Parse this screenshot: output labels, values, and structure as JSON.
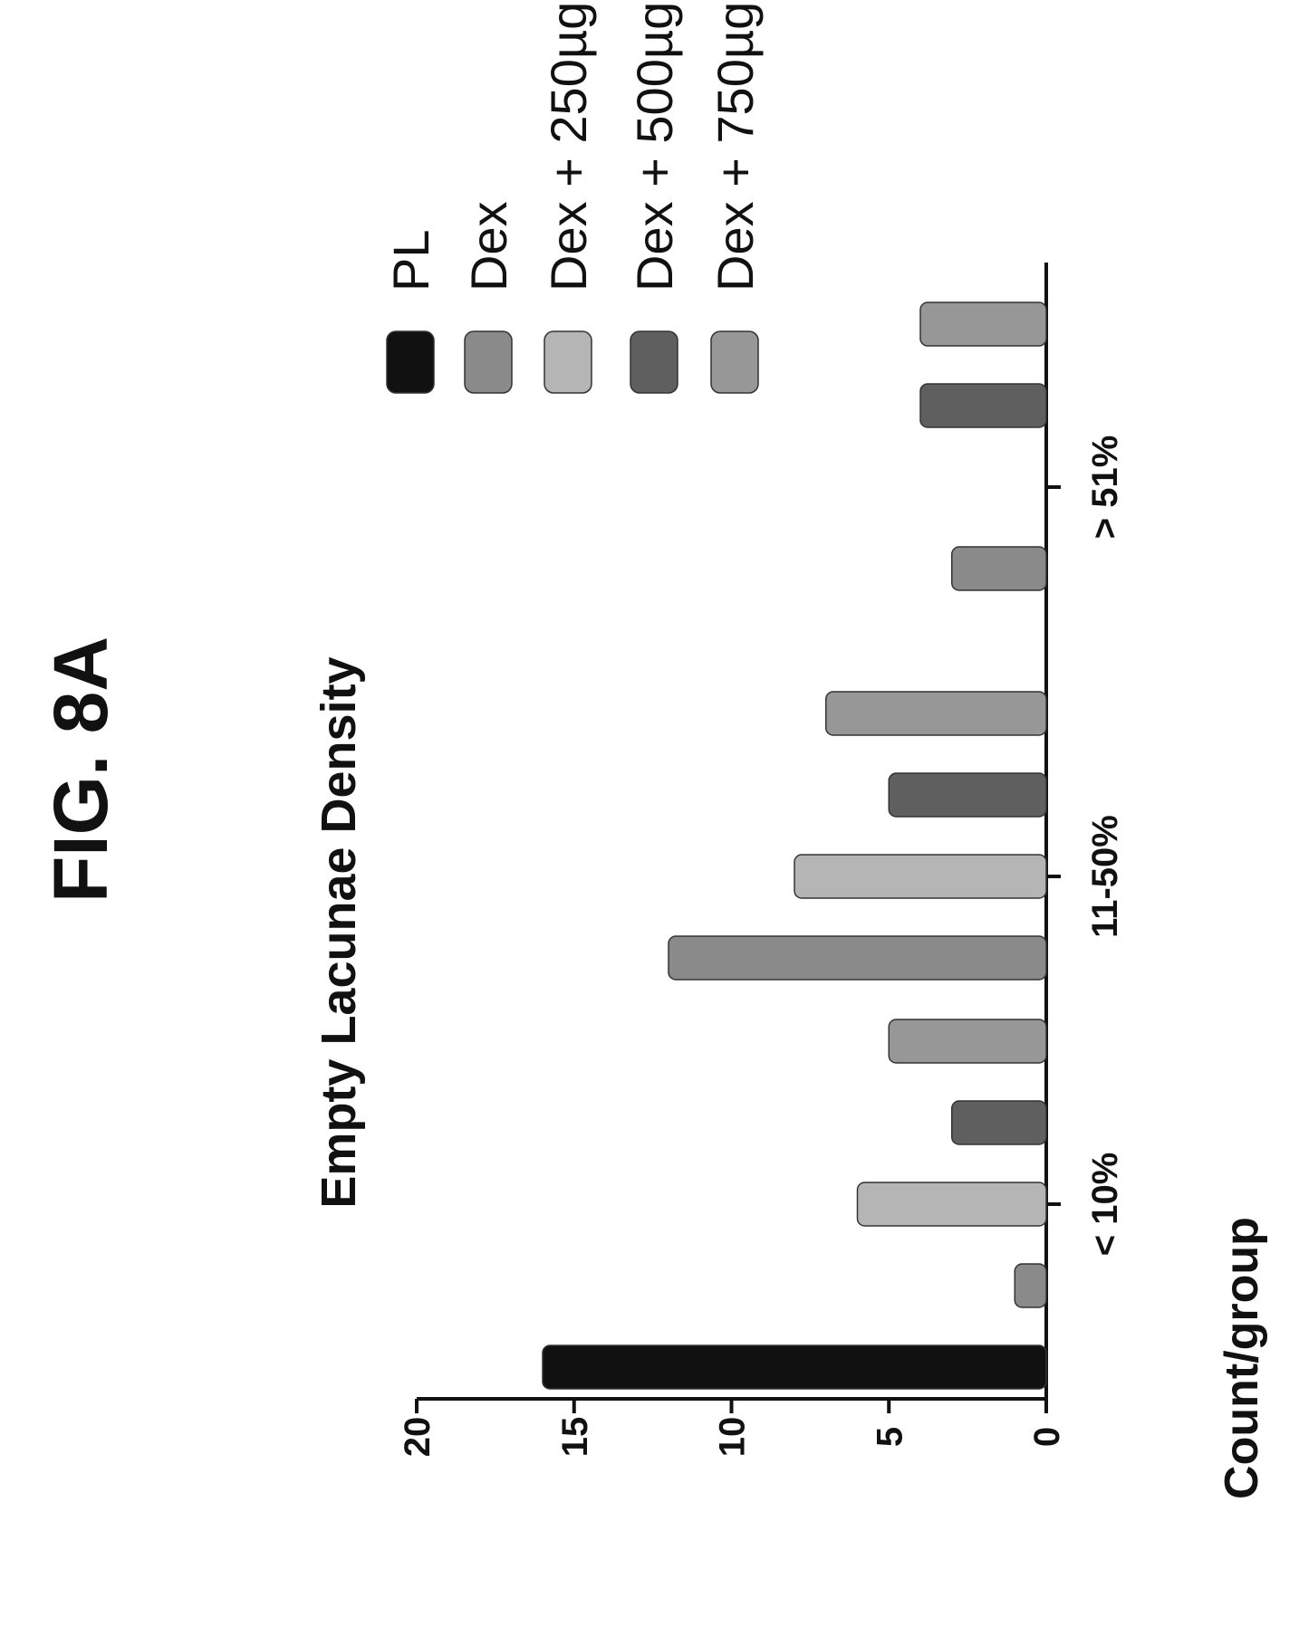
{
  "figure_label": "FIG. 8A",
  "chart_data": {
    "type": "bar",
    "title": "Empty Lacunae Density",
    "xlabel": "",
    "ylabel": "Count/group",
    "categories": [
      "< 10%",
      "11-50%",
      "> 51%"
    ],
    "ylim": [
      0,
      20
    ],
    "yticks": [
      0,
      5,
      10,
      15,
      20
    ],
    "orientation": "rotated 90° clockwise on the page",
    "legend_position": "right",
    "grid": false,
    "series": [
      {
        "name": "PL",
        "color": "#111111",
        "values": [
          16,
          0,
          0
        ]
      },
      {
        "name": "Dex",
        "color": "#8a8a8a",
        "values": [
          1,
          12,
          3
        ]
      },
      {
        "name": "Dex + 250µg",
        "color": "#b5b5b5",
        "values": [
          6,
          8,
          0
        ]
      },
      {
        "name": "Dex + 500µg",
        "color": "#5f5f5f",
        "values": [
          3,
          5,
          4
        ]
      },
      {
        "name": "Dex + 750µg",
        "color": "#979797",
        "values": [
          5,
          7,
          4
        ]
      }
    ]
  }
}
